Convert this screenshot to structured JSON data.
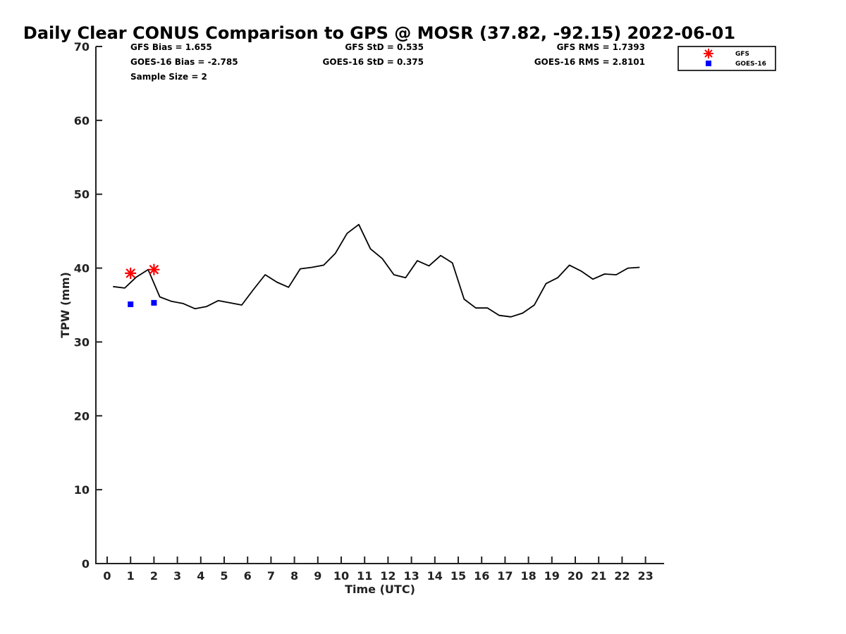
{
  "chart_data": {
    "type": "line",
    "title": "Daily Clear CONUS Comparison to GPS @ MOSR (37.82, -92.15) 2022-06-01",
    "xlabel": "Time (UTC)",
    "ylabel": "TPW (mm)",
    "xlim": [
      -0.5,
      23.75
    ],
    "ylim": [
      0,
      70
    ],
    "x_ticks": [
      0,
      1,
      2,
      3,
      4,
      5,
      6,
      7,
      8,
      9,
      10,
      11,
      12,
      13,
      14,
      15,
      16,
      17,
      18,
      19,
      20,
      21,
      22,
      23
    ],
    "y_ticks": [
      0,
      10,
      20,
      30,
      40,
      50,
      60,
      70
    ],
    "grid": false,
    "legend_position": "top-right (outside axes)",
    "gps_line": {
      "name": "GPS",
      "color": "#000000",
      "x": [
        0.25,
        0.75,
        1.25,
        1.75,
        2.25,
        2.75,
        3.25,
        3.75,
        4.25,
        4.75,
        5.25,
        5.75,
        6.25,
        6.75,
        7.25,
        7.75,
        8.25,
        8.75,
        9.25,
        9.75,
        10.25,
        10.75,
        11.25,
        11.75,
        12.25,
        12.75,
        13.25,
        13.75,
        14.25,
        14.75,
        15.25,
        15.75,
        16.25,
        16.75,
        17.25,
        17.75,
        18.25,
        18.75,
        19.25,
        19.75,
        20.25,
        20.75,
        21.25,
        21.75,
        22.25,
        22.75
      ],
      "y": [
        37.5,
        37.3,
        38.8,
        39.8,
        36.1,
        35.5,
        35.2,
        34.5,
        34.8,
        35.6,
        35.3,
        35.0,
        37.1,
        39.1,
        38.1,
        37.4,
        39.9,
        40.1,
        40.4,
        42.0,
        44.7,
        45.9,
        42.6,
        41.3,
        39.1,
        38.7,
        41.0,
        40.3,
        41.7,
        40.7,
        35.8,
        34.6,
        34.6,
        33.6,
        33.4,
        33.9,
        35.0,
        37.9,
        38.7,
        40.4,
        39.6,
        38.5,
        39.2,
        39.1,
        40.0,
        40.1
      ]
    },
    "series": [
      {
        "name": "GFS",
        "marker": "asterisk",
        "color": "#ff0000",
        "x": [
          1,
          2
        ],
        "y": [
          39.3,
          39.8
        ]
      },
      {
        "name": "GOES-16",
        "marker": "square",
        "color": "#0000ff",
        "x": [
          1,
          2
        ],
        "y": [
          35.1,
          35.3
        ]
      }
    ],
    "stats": {
      "gfs_bias": "GFS Bias = 1.655",
      "goes_bias": "GOES-16 Bias = -2.785",
      "sample_size": "Sample Size = 2",
      "gfs_std": "GFS StD = 0.535",
      "goes_std": "GOES-16 StD = 0.375",
      "gfs_rms": "GFS RMS = 1.7393",
      "goes_rms": "GOES-16 RMS = 2.8101"
    }
  }
}
